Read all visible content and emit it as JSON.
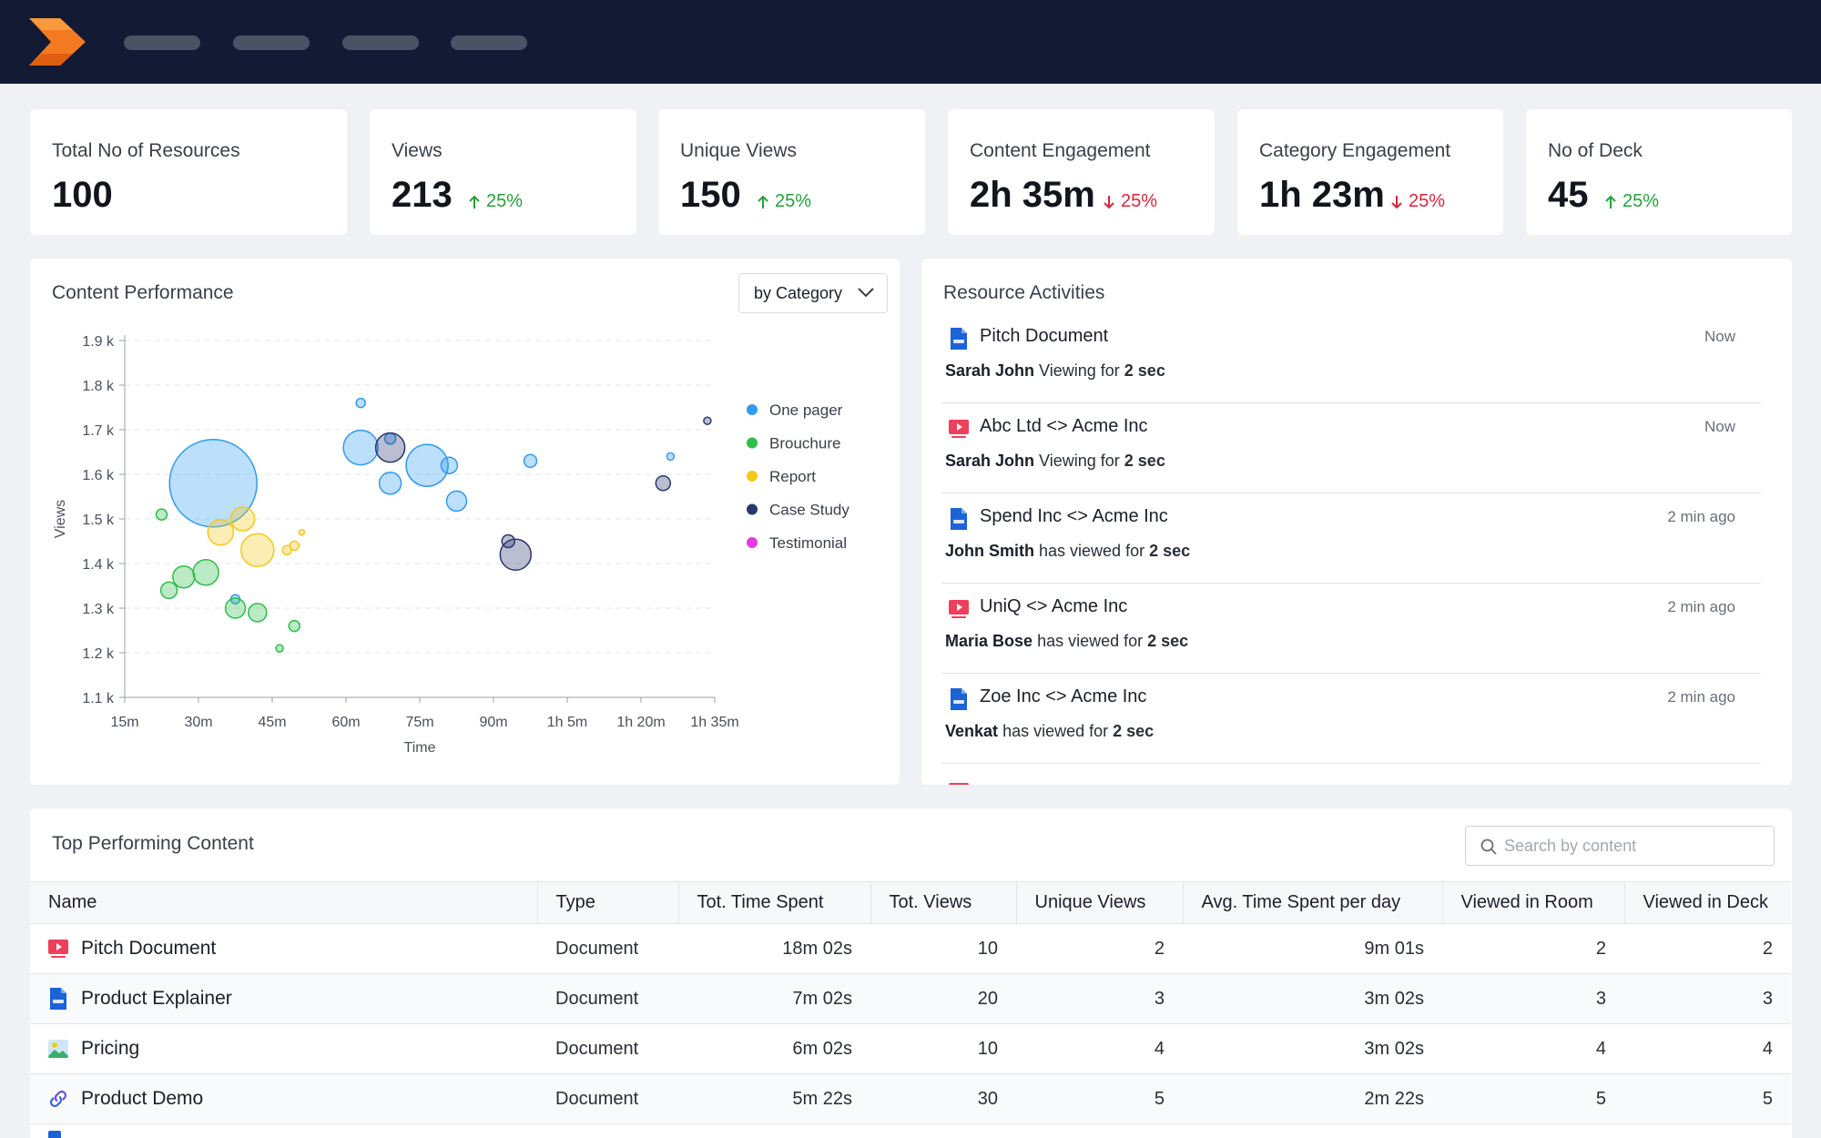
{
  "stats": [
    {
      "label": "Total No of Resources",
      "value": "100",
      "change": "",
      "direction": ""
    },
    {
      "label": "Views",
      "value": "213",
      "change": "25%",
      "direction": "up"
    },
    {
      "label": "Unique Views",
      "value": "150",
      "change": "25%",
      "direction": "up"
    },
    {
      "label": "Content Engagement",
      "value": "2h 35m",
      "change": "25%",
      "direction": "down"
    },
    {
      "label": "Category Engagement",
      "value": "1h 23m",
      "change": "25%",
      "direction": "down"
    },
    {
      "label": "No of Deck",
      "value": "45",
      "change": "25%",
      "direction": "up"
    }
  ],
  "content_performance": {
    "title": "Content Performance",
    "filter_label": "by Category"
  },
  "chart_data": {
    "type": "scatter",
    "xlabel": "Time",
    "ylabel": "Views",
    "x_ticks": [
      "15m",
      "30m",
      "45m",
      "60m",
      "75m",
      "90m",
      "1h 5m",
      "1h 20m",
      "1h 35m"
    ],
    "y_ticks": [
      "1.9 k",
      "1.8 k",
      "1.7 k",
      "1.6 k",
      "1.5 k",
      "1.4 k",
      "1.3 k",
      "1.2 k",
      "1.1 k"
    ],
    "xlim": [
      15,
      95
    ],
    "ylim": [
      1100,
      1900
    ],
    "legend_position": "right",
    "grid": "horizontal-dashed",
    "series": [
      {
        "name": "One pager",
        "color": "#2f9bf2",
        "points": [
          {
            "x": 27,
            "y": 1580,
            "size": 48
          },
          {
            "x": 47,
            "y": 1760,
            "size": 5
          },
          {
            "x": 47,
            "y": 1660,
            "size": 19
          },
          {
            "x": 51,
            "y": 1680,
            "size": 6
          },
          {
            "x": 51,
            "y": 1580,
            "size": 12
          },
          {
            "x": 56,
            "y": 1620,
            "size": 23
          },
          {
            "x": 59,
            "y": 1620,
            "size": 9
          },
          {
            "x": 60,
            "y": 1540,
            "size": 11
          },
          {
            "x": 70,
            "y": 1630,
            "size": 7
          },
          {
            "x": 89,
            "y": 1640,
            "size": 4
          },
          {
            "x": 30,
            "y": 1320,
            "size": 5
          }
        ]
      },
      {
        "name": "Brouchure",
        "color": "#2dbf4a",
        "points": [
          {
            "x": 20,
            "y": 1510,
            "size": 6
          },
          {
            "x": 23,
            "y": 1370,
            "size": 12
          },
          {
            "x": 21,
            "y": 1340,
            "size": 9
          },
          {
            "x": 26,
            "y": 1380,
            "size": 14
          },
          {
            "x": 30,
            "y": 1300,
            "size": 11
          },
          {
            "x": 33,
            "y": 1290,
            "size": 10
          },
          {
            "x": 38,
            "y": 1260,
            "size": 6
          },
          {
            "x": 36,
            "y": 1210,
            "size": 4
          }
        ]
      },
      {
        "name": "Report",
        "color": "#f5c818",
        "points": [
          {
            "x": 28,
            "y": 1470,
            "size": 14
          },
          {
            "x": 31,
            "y": 1500,
            "size": 13
          },
          {
            "x": 33,
            "y": 1430,
            "size": 18
          },
          {
            "x": 37,
            "y": 1430,
            "size": 5
          },
          {
            "x": 38,
            "y": 1440,
            "size": 5
          },
          {
            "x": 39,
            "y": 1470,
            "size": 3
          }
        ]
      },
      {
        "name": "Case Study",
        "color": "#2a3670",
        "points": [
          {
            "x": 51,
            "y": 1660,
            "size": 16
          },
          {
            "x": 67,
            "y": 1450,
            "size": 7
          },
          {
            "x": 68,
            "y": 1420,
            "size": 17
          },
          {
            "x": 88,
            "y": 1580,
            "size": 8
          },
          {
            "x": 94,
            "y": 1720,
            "size": 4
          }
        ]
      },
      {
        "name": "Testimonial",
        "color": "#e43ae0",
        "points": []
      }
    ]
  },
  "resource_activities": {
    "title": "Resource Activities",
    "items": [
      {
        "icon": "doc",
        "title": "Pitch Document",
        "time": "Now",
        "name": "Sarah John",
        "action": "Viewing for",
        "duration": "2 sec"
      },
      {
        "icon": "video",
        "title": "Abc Ltd <> Acme Inc",
        "time": "Now",
        "name": "Sarah John",
        "action": "Viewing for",
        "duration": "2 sec"
      },
      {
        "icon": "doc",
        "title": "Spend Inc <> Acme Inc",
        "time": "2 min ago",
        "name": "John Smith",
        "action": "has viewed for",
        "duration": "2 sec"
      },
      {
        "icon": "video",
        "title": "UniQ <> Acme Inc",
        "time": "2 min ago",
        "name": "Maria Bose",
        "action": "has viewed for",
        "duration": "2 sec"
      },
      {
        "icon": "doc",
        "title": "Zoe Inc <> Acme Inc",
        "time": "2 min ago",
        "name": "Venkat",
        "action": "has viewed for",
        "duration": "2 sec"
      }
    ]
  },
  "top_content": {
    "title": "Top Performing Content",
    "search_placeholder": "Search by content",
    "columns": [
      "Name",
      "Type",
      "Tot. Time Spent",
      "Tot. Views",
      "Unique Views",
      "Avg. Time Spent per day",
      "Viewed in Room",
      "Viewed in Deck"
    ],
    "rows": [
      {
        "icon": "video",
        "name": "Pitch Document",
        "type": "Document",
        "time": "18m 02s",
        "views": "10",
        "unique": "2",
        "avg": "9m 01s",
        "room": "2",
        "deck": "2"
      },
      {
        "icon": "doc",
        "name": "Product Explainer",
        "type": "Document",
        "time": "7m 02s",
        "views": "20",
        "unique": "3",
        "avg": "3m 02s",
        "room": "3",
        "deck": "3"
      },
      {
        "icon": "image",
        "name": "Pricing",
        "type": "Document",
        "time": "6m 02s",
        "views": "10",
        "unique": "4",
        "avg": "3m 02s",
        "room": "4",
        "deck": "4"
      },
      {
        "icon": "link",
        "name": "Product Demo",
        "type": "Document",
        "time": "5m 22s",
        "views": "30",
        "unique": "5",
        "avg": "2m 22s",
        "room": "5",
        "deck": "5"
      }
    ]
  }
}
